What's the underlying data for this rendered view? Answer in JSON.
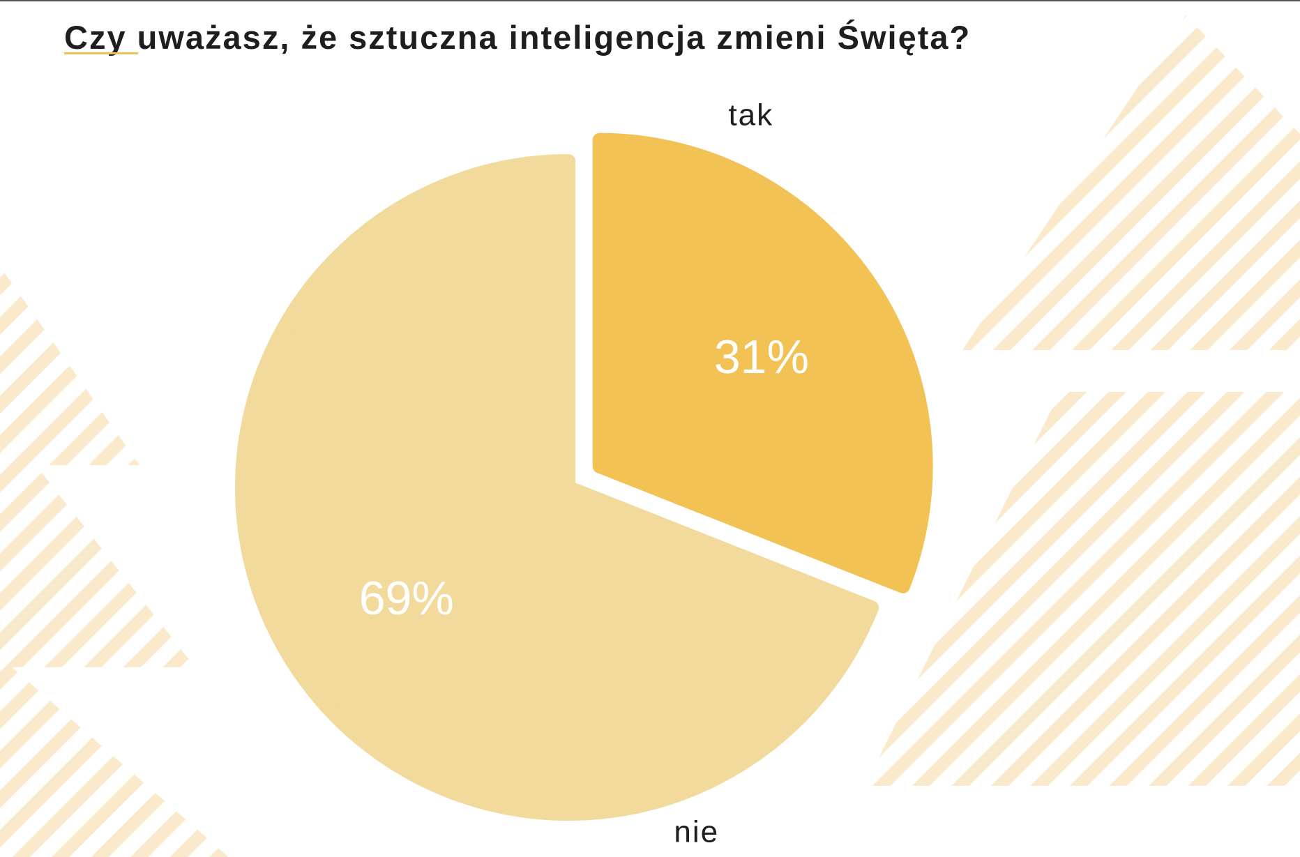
{
  "title": "Czy uważasz, że sztuczna inteligencja zmieni Święta?",
  "colors": {
    "accent": "#f0c453",
    "stripes": "#faeacb",
    "slice_tak": "#f2c254",
    "slice_nie": "#f1da9c",
    "value_label": "#ffffff",
    "category_label": "#1e1e1e"
  },
  "chart_data": {
    "type": "pie",
    "title": "Czy uważasz, że sztuczna inteligencja zmieni Święta?",
    "categories": [
      "tak",
      "nie"
    ],
    "values": [
      31,
      69
    ],
    "value_labels": [
      "31%",
      "69%"
    ],
    "legend": "none",
    "exploded": [
      "tak"
    ]
  }
}
